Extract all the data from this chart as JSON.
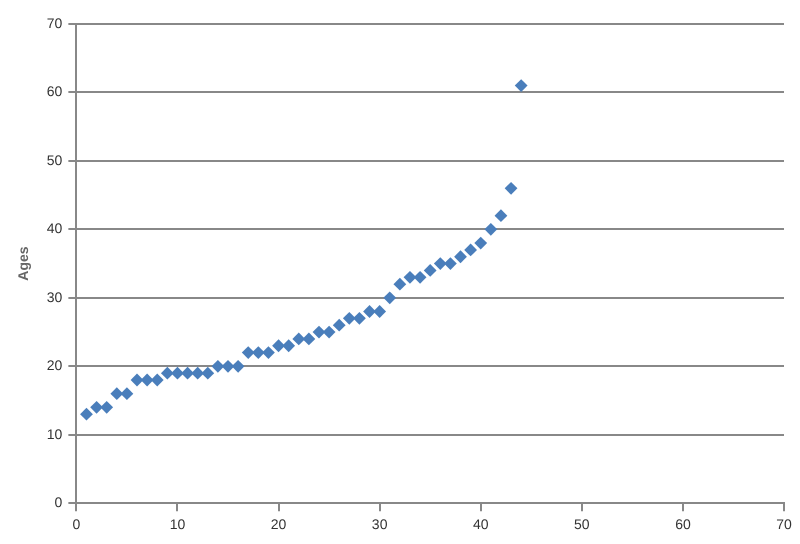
{
  "chart_data": {
    "type": "scatter",
    "ylabel": "Ages",
    "x": [
      1,
      2,
      3,
      4,
      5,
      6,
      7,
      8,
      9,
      10,
      11,
      12,
      13,
      14,
      15,
      16,
      17,
      18,
      19,
      20,
      21,
      22,
      23,
      24,
      25,
      26,
      27,
      28,
      29,
      30,
      31,
      32,
      33,
      34,
      35,
      36,
      37,
      38,
      39,
      40,
      41,
      42,
      43,
      44
    ],
    "series": [
      {
        "color": "#4a7ebb",
        "values": [
          13,
          14,
          14,
          16,
          16,
          18,
          18,
          18,
          19,
          19,
          19,
          19,
          19,
          20,
          20,
          20,
          22,
          22,
          22,
          23,
          23,
          24,
          24,
          25,
          25,
          26,
          27,
          27,
          28,
          28,
          30,
          32,
          33,
          33,
          34,
          35,
          35,
          36,
          37,
          38,
          40,
          42,
          46,
          61
        ]
      }
    ],
    "xlim": [
      0,
      70
    ],
    "xticks": [
      0,
      10,
      20,
      30,
      40,
      50,
      60,
      70
    ],
    "ylim": [
      0,
      70
    ],
    "yticks": [
      0,
      10,
      20,
      30,
      40,
      50,
      60,
      70
    ],
    "grid": "y",
    "legend": false,
    "marker": "diamond"
  }
}
